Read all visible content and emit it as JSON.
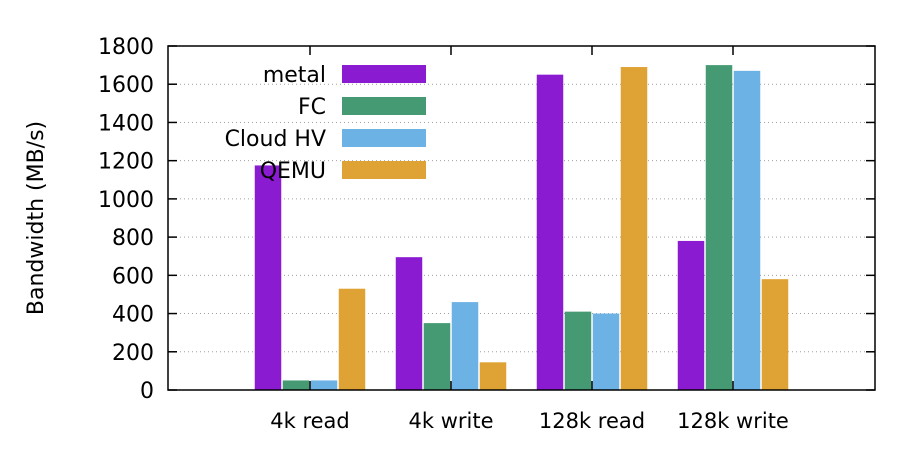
{
  "chart_data": {
    "type": "bar",
    "title": "",
    "xlabel": "",
    "ylabel": "Bandwidth (MB/s)",
    "ylim": [
      0,
      1800
    ],
    "yticks": [
      0,
      200,
      400,
      600,
      800,
      1000,
      1200,
      1400,
      1600,
      1800
    ],
    "grid": true,
    "legend_position": "top-left",
    "categories": [
      "4k read",
      "4k write",
      "128k read",
      "128k write"
    ],
    "series": [
      {
        "name": "metal",
        "color": "#8b1bd1",
        "values": [
          1175,
          695,
          1650,
          780
        ]
      },
      {
        "name": "FC",
        "color": "#459a73",
        "values": [
          50,
          350,
          410,
          1700
        ]
      },
      {
        "name": "Cloud HV",
        "color": "#6db2e4",
        "values": [
          50,
          460,
          400,
          1670
        ]
      },
      {
        "name": "QEMU",
        "color": "#dfa335",
        "values": [
          530,
          145,
          1690,
          580
        ]
      }
    ]
  }
}
